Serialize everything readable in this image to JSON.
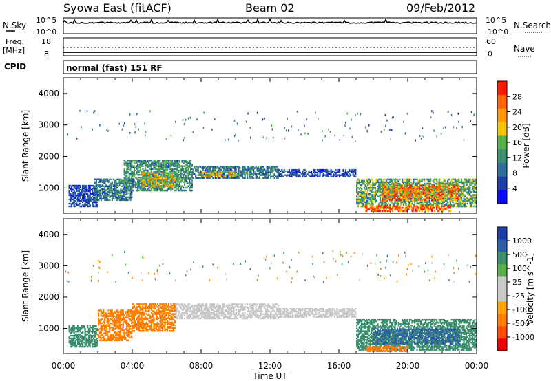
{
  "header": {
    "station": "Syowa East (fitACF)",
    "beam": "Beam 02",
    "date": "09/Feb/2012"
  },
  "top_panel": {
    "left_label": "N.Sky",
    "left_ticks": [
      "10^5",
      "10^0"
    ],
    "right_label": "N.Search",
    "right_ticks": [
      "10^5",
      "10^0"
    ]
  },
  "freq_panel": {
    "left_label_1": "Freq.",
    "left_label_2": "[MHz]",
    "left_ticks": [
      "18",
      "8"
    ],
    "right_label": "Nave",
    "right_ticks": [
      "60",
      "0"
    ]
  },
  "cpid": {
    "label": "CPID",
    "value": "normal (fast) 151 RF"
  },
  "x_axis": {
    "ticks": [
      "00:00",
      "04:00",
      "08:00",
      "12:00",
      "16:00",
      "20:00",
      "00:00"
    ],
    "label": "Time UT"
  },
  "colors": {
    "power_scale": [
      "#0a0aff",
      "#1f3fa8",
      "#2f6e9a",
      "#3b8f6f",
      "#55b04a",
      "#f5c400",
      "#ff9a00",
      "#ff6600",
      "#ff1a00"
    ],
    "velocity_scale": [
      "#f00000",
      "#ff4a00",
      "#ff7f00",
      "#ffa500",
      "#c8c8c8",
      "#c8c8c8",
      "#55b04a",
      "#3b8f6f",
      "#2f5ea8",
      "#1f3fa8"
    ]
  },
  "chart_data": [
    {
      "type": "heatmap",
      "title": "",
      "xlabel": "Time UT",
      "ylabel": "Slant Range [km]",
      "x_ticks": [
        "00:00",
        "04:00",
        "08:00",
        "12:00",
        "16:00",
        "20:00",
        "00:00"
      ],
      "y_ticks": [
        1000,
        2000,
        3000,
        4000
      ],
      "ylim": [
        200,
        4500
      ],
      "colorbar": {
        "label": "Power [dB]",
        "ticks": [
          4,
          8,
          12,
          16,
          20,
          24,
          28
        ],
        "range": [
          0,
          32
        ]
      },
      "regions": [
        {
          "t": [
            0.3,
            2.0
          ],
          "r": [
            400,
            1100
          ],
          "value": 6
        },
        {
          "t": [
            1.8,
            4.0
          ],
          "r": [
            600,
            1300
          ],
          "value": 10
        },
        {
          "t": [
            3.5,
            7.5
          ],
          "r": [
            900,
            1900
          ],
          "value": 12
        },
        {
          "t": [
            4.5,
            6.5
          ],
          "r": [
            1000,
            1500
          ],
          "value": 18
        },
        {
          "t": [
            7.5,
            12.5
          ],
          "r": [
            1300,
            1700
          ],
          "value": 10
        },
        {
          "t": [
            8.0,
            10.0
          ],
          "r": [
            1350,
            1550
          ],
          "value": 20
        },
        {
          "t": [
            12.5,
            17.0
          ],
          "r": [
            1350,
            1600
          ],
          "value": 6
        },
        {
          "t": [
            17.0,
            24.0
          ],
          "r": [
            400,
            1300
          ],
          "value": 14
        },
        {
          "t": [
            18.5,
            23.0
          ],
          "r": [
            600,
            1100
          ],
          "value": 24
        },
        {
          "t": [
            17.5,
            22.5
          ],
          "r": [
            250,
            450
          ],
          "value": 28
        }
      ]
    },
    {
      "type": "heatmap",
      "title": "",
      "xlabel": "Time UT",
      "ylabel": "Slant Range [km]",
      "x_ticks": [
        "00:00",
        "04:00",
        "08:00",
        "12:00",
        "16:00",
        "20:00",
        "00:00"
      ],
      "y_ticks": [
        1000,
        2000,
        3000,
        4000
      ],
      "ylim": [
        200,
        4500
      ],
      "colorbar": {
        "label": "Velocity [m s^-1]",
        "ticks": [
          "1000",
          "500",
          "100",
          "25",
          "-25",
          "-100",
          "-500",
          "-1000"
        ],
        "range": [
          -1200,
          1200
        ]
      },
      "regions": [
        {
          "t": [
            0.3,
            2.0
          ],
          "r": [
            400,
            1100
          ],
          "value": 150
        },
        {
          "t": [
            2.0,
            4.0
          ],
          "r": [
            600,
            1600
          ],
          "value": -200
        },
        {
          "t": [
            4.0,
            6.5
          ],
          "r": [
            900,
            1800
          ],
          "value": -300
        },
        {
          "t": [
            6.5,
            12.5
          ],
          "r": [
            1300,
            1800
          ],
          "value": 0
        },
        {
          "t": [
            12.5,
            17.0
          ],
          "r": [
            1350,
            1650
          ],
          "value": 0
        },
        {
          "t": [
            17.0,
            24.0
          ],
          "r": [
            300,
            1300
          ],
          "value": 300
        },
        {
          "t": [
            18.0,
            23.0
          ],
          "r": [
            500,
            1000
          ],
          "value": 600
        },
        {
          "t": [
            17.5,
            20.0
          ],
          "r": [
            250,
            450
          ],
          "value": -150
        }
      ]
    }
  ]
}
